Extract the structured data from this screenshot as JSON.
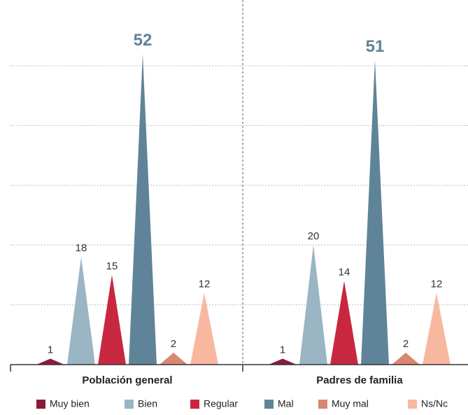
{
  "chart_data": {
    "type": "triangle-bar",
    "categories": [
      "Población general",
      "Padres de familia"
    ],
    "series": [
      {
        "name": "Muy bien",
        "color": "#8b1a3a",
        "values": [
          1,
          1
        ]
      },
      {
        "name": "Bien",
        "color": "#9ab5c4",
        "values": [
          18,
          20
        ]
      },
      {
        "name": "Regular",
        "color": "#c8283f",
        "values": [
          15,
          14
        ]
      },
      {
        "name": "Mal",
        "color": "#5f8499",
        "values": [
          52,
          51
        ]
      },
      {
        "name": "Muy mal",
        "color": "#d98770",
        "values": [
          2,
          2
        ]
      },
      {
        "name": "Ns/Nc",
        "color": "#f8b8a0",
        "values": [
          12,
          12
        ]
      }
    ],
    "ylim": [
      0,
      61
    ],
    "yticks": [
      0,
      10,
      20,
      30,
      40,
      50
    ],
    "grid": true,
    "legend": "bottom"
  }
}
